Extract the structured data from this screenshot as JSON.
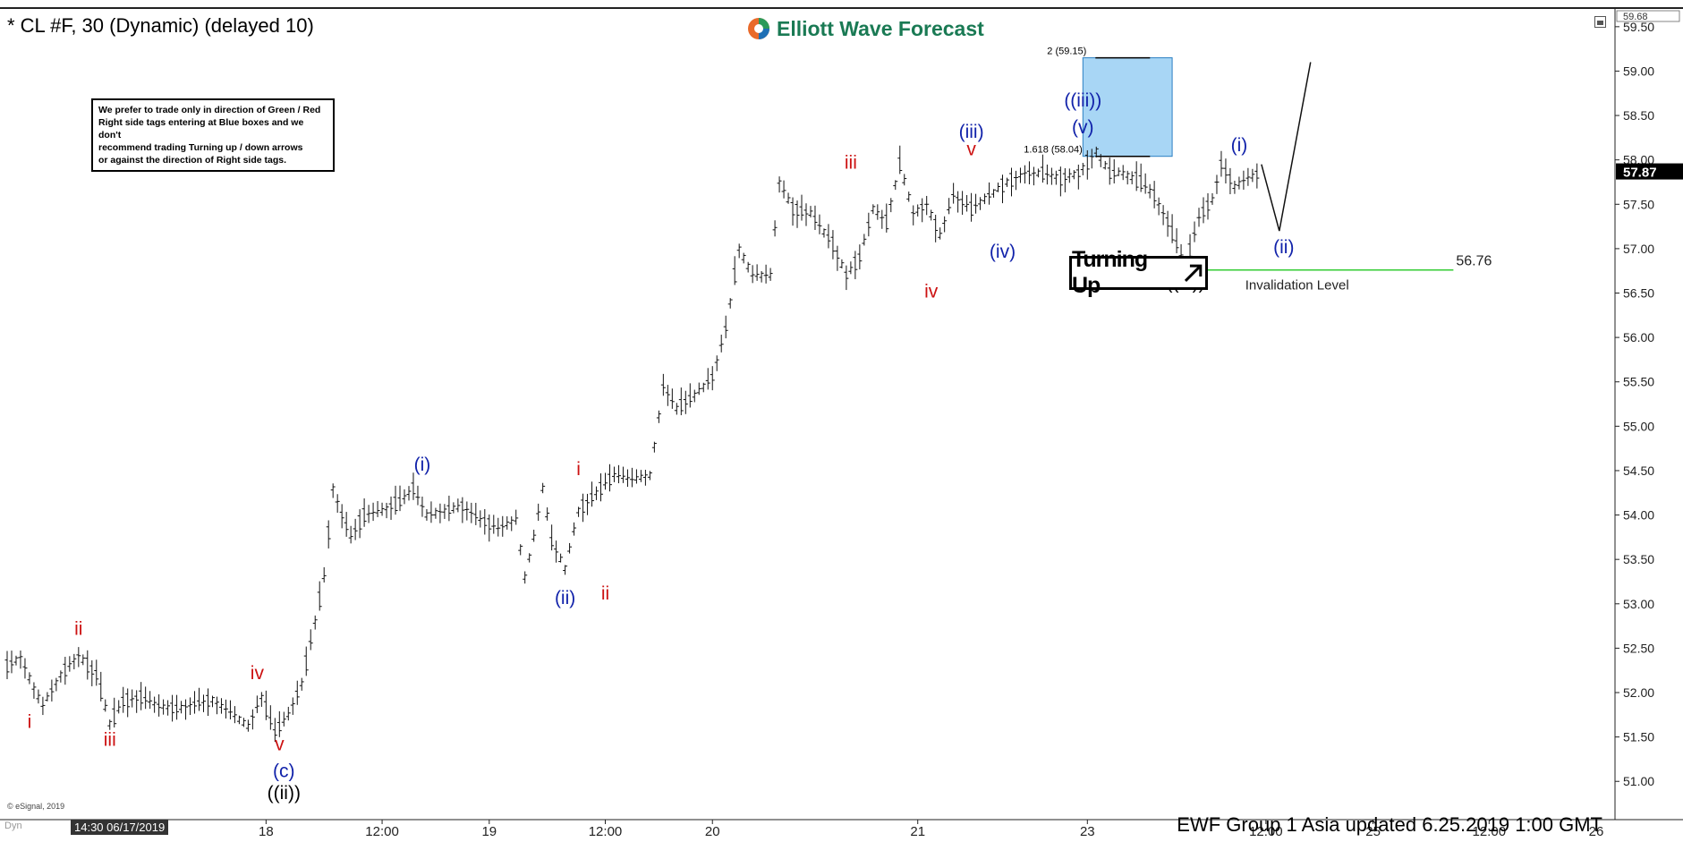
{
  "header": {
    "title": "* CL #F, 30 (Dynamic) (delayed 10)",
    "logo_text": "Elliott Wave Forecast"
  },
  "note": {
    "lines": [
      "We prefer to trade only in direction of Green / Red",
      "Right side tags entering at Blue boxes and we don't",
      "recommend trading Turning up / down arrows",
      "or against the direction of Right side tags."
    ]
  },
  "turning_label": "Turning Up",
  "footer": {
    "text": "EWF Group  1 Asia  updated 6.25.2019 1:00 GMT",
    "copyright": "© eSignal, 2019",
    "dyn": "Dyn",
    "date_box": "14:30 06/17/2019"
  },
  "colors": {
    "red": "#cc1111",
    "blue": "#1122aa",
    "black": "#000000",
    "box_fill": "#a8d6f5",
    "box_stroke": "#2b7fc2",
    "invalidation": "#33cc33"
  },
  "chart_data": {
    "type": "bar",
    "title": "* CL #F, 30 (Dynamic) (delayed 10)",
    "y_axis": {
      "ylim": [
        50.7,
        59.7
      ],
      "ticks": [
        51.0,
        51.5,
        52.0,
        52.5,
        53.0,
        53.5,
        54.0,
        54.5,
        55.0,
        55.5,
        56.0,
        56.5,
        57.0,
        57.5,
        58.0,
        58.5,
        59.0,
        59.5
      ],
      "tick_labels": [
        "51.00",
        "51.50",
        "52.00",
        "52.50",
        "53.00",
        "53.50",
        "54.00",
        "54.50",
        "55.00",
        "55.50",
        "56.00",
        "56.50",
        "57.00",
        "57.50",
        "58.00",
        "58.50",
        "59.00",
        "59.50"
      ],
      "top_label": "59.68",
      "last_price": 57.87,
      "last_price_label": "57.87"
    },
    "x_axis": {
      "ticks": [
        {
          "label": "18",
          "x": 29
        },
        {
          "label": "12:00",
          "x": 42
        },
        {
          "label": "19",
          "x": 54
        },
        {
          "label": "12:00",
          "x": 67
        },
        {
          "label": "20",
          "x": 79
        },
        {
          "label": "21",
          "x": 102
        },
        {
          "label": "23",
          "x": 121
        },
        {
          "label": "12:00",
          "x": 141
        },
        {
          "label": "25",
          "x": 153
        },
        {
          "label": "12:00",
          "x": 166
        },
        {
          "label": "26",
          "x": 178
        }
      ],
      "xlim": [
        0,
        180
      ]
    },
    "price_path": [
      [
        0,
        52.3
      ],
      [
        1.5,
        52.4
      ],
      [
        3,
        52.05
      ],
      [
        4,
        51.85
      ],
      [
        6,
        52.2
      ],
      [
        8,
        52.42
      ],
      [
        10,
        52.2
      ],
      [
        11.5,
        51.65
      ],
      [
        13,
        51.9
      ],
      [
        15,
        51.95
      ],
      [
        17,
        51.85
      ],
      [
        19,
        51.82
      ],
      [
        21,
        51.87
      ],
      [
        23,
        51.92
      ],
      [
        25,
        51.78
      ],
      [
        27,
        51.62
      ],
      [
        28.5,
        51.95
      ],
      [
        30,
        51.55
      ],
      [
        31.5,
        51.75
      ],
      [
        33,
        52.1
      ],
      [
        34.5,
        52.8
      ],
      [
        35.5,
        53.3
      ],
      [
        36.5,
        54.3
      ],
      [
        37.5,
        54.0
      ],
      [
        38.5,
        53.75
      ],
      [
        40,
        54.0
      ],
      [
        42,
        54.05
      ],
      [
        44,
        54.15
      ],
      [
        45.5,
        54.3
      ],
      [
        47,
        54.0
      ],
      [
        49,
        54.05
      ],
      [
        51,
        54.1
      ],
      [
        53,
        53.95
      ],
      [
        55,
        53.85
      ],
      [
        57,
        53.95
      ],
      [
        58,
        53.3
      ],
      [
        59,
        53.75
      ],
      [
        60,
        54.3
      ],
      [
        61,
        53.7
      ],
      [
        62.5,
        53.4
      ],
      [
        64,
        54.05
      ],
      [
        66,
        54.25
      ],
      [
        68,
        54.45
      ],
      [
        70,
        54.4
      ],
      [
        72,
        54.45
      ],
      [
        73.5,
        55.45
      ],
      [
        75,
        55.2
      ],
      [
        77,
        55.35
      ],
      [
        79,
        55.55
      ],
      [
        80.5,
        56.1
      ],
      [
        82,
        57.0
      ],
      [
        83.5,
        56.7
      ],
      [
        85.5,
        56.7
      ],
      [
        86.5,
        57.75
      ],
      [
        88,
        57.45
      ],
      [
        90,
        57.4
      ],
      [
        92.5,
        57.05
      ],
      [
        94,
        56.7
      ],
      [
        95.5,
        56.9
      ],
      [
        97,
        57.45
      ],
      [
        98.5,
        57.3
      ],
      [
        100,
        57.95
      ],
      [
        101.5,
        57.4
      ],
      [
        103,
        57.5
      ],
      [
        104.5,
        57.15
      ],
      [
        106,
        57.6
      ],
      [
        108,
        57.45
      ],
      [
        110,
        57.6
      ],
      [
        112,
        57.75
      ],
      [
        114,
        57.85
      ],
      [
        116,
        57.85
      ],
      [
        118,
        57.8
      ],
      [
        120,
        57.85
      ],
      [
        122,
        58.1
      ],
      [
        123.5,
        57.85
      ],
      [
        125,
        57.85
      ],
      [
        127,
        57.75
      ],
      [
        128.5,
        57.6
      ],
      [
        130,
        57.3
      ],
      [
        131,
        57.05
      ],
      [
        132,
        56.8
      ],
      [
        133.5,
        57.35
      ],
      [
        135,
        57.55
      ],
      [
        136,
        57.95
      ],
      [
        137.5,
        57.7
      ],
      [
        139,
        57.8
      ],
      [
        140.5,
        57.85
      ]
    ],
    "projection": {
      "points": [
        [
          140.5,
          57.95
        ],
        [
          142.5,
          57.2
        ],
        [
          146,
          59.1
        ]
      ],
      "pivot_label": "(ii)"
    },
    "target_box": {
      "x_start": 120.5,
      "x_end": 130.5,
      "y_low": 58.04,
      "y_high": 59.15,
      "labels": [
        "2 (59.15)",
        "1.618 (58.04)"
      ]
    },
    "invalidation": {
      "price": 56.76,
      "price_label": "56.76",
      "label": "Invalidation Level",
      "x_start": 132,
      "x_end": 162
    },
    "wave_labels": [
      {
        "text": "i",
        "x": 2.5,
        "y": 51.6,
        "color": "red"
      },
      {
        "text": "ii",
        "x": 8,
        "y": 52.65,
        "color": "red"
      },
      {
        "text": "iii",
        "x": 11.5,
        "y": 51.4,
        "color": "red"
      },
      {
        "text": "iv",
        "x": 28,
        "y": 52.15,
        "color": "red"
      },
      {
        "text": "v",
        "x": 30.5,
        "y": 51.35,
        "color": "red"
      },
      {
        "text": "(c)",
        "x": 31,
        "y": 51.05,
        "color": "blue"
      },
      {
        "text": "((ii))",
        "x": 31,
        "y": 50.8,
        "color": "black"
      },
      {
        "text": "(i)",
        "x": 46.5,
        "y": 54.5,
        "color": "blue"
      },
      {
        "text": "(ii)",
        "x": 62.5,
        "y": 53.0,
        "color": "blue"
      },
      {
        "text": "i",
        "x": 64,
        "y": 54.45,
        "color": "red"
      },
      {
        "text": "ii",
        "x": 67,
        "y": 53.05,
        "color": "red"
      },
      {
        "text": "iii",
        "x": 94.5,
        "y": 57.9,
        "color": "red"
      },
      {
        "text": "iv",
        "x": 103.5,
        "y": 56.45,
        "color": "red"
      },
      {
        "text": "v",
        "x": 108,
        "y": 58.05,
        "color": "red"
      },
      {
        "text": "(iii)",
        "x": 108,
        "y": 58.25,
        "color": "blue"
      },
      {
        "text": "(iv)",
        "x": 111.5,
        "y": 56.9,
        "color": "blue"
      },
      {
        "text": "((iii))",
        "x": 120.5,
        "y": 58.6,
        "color": "blue"
      },
      {
        "text": "(v)",
        "x": 120.5,
        "y": 58.3,
        "color": "blue"
      },
      {
        "text": "(i)",
        "x": 138,
        "y": 58.1,
        "color": "blue"
      },
      {
        "text": "((iv))",
        "x": 132,
        "y": 56.55,
        "color": "black"
      },
      {
        "text": "(ii)",
        "x": 143,
        "y": 56.95,
        "color": "blue"
      }
    ]
  }
}
